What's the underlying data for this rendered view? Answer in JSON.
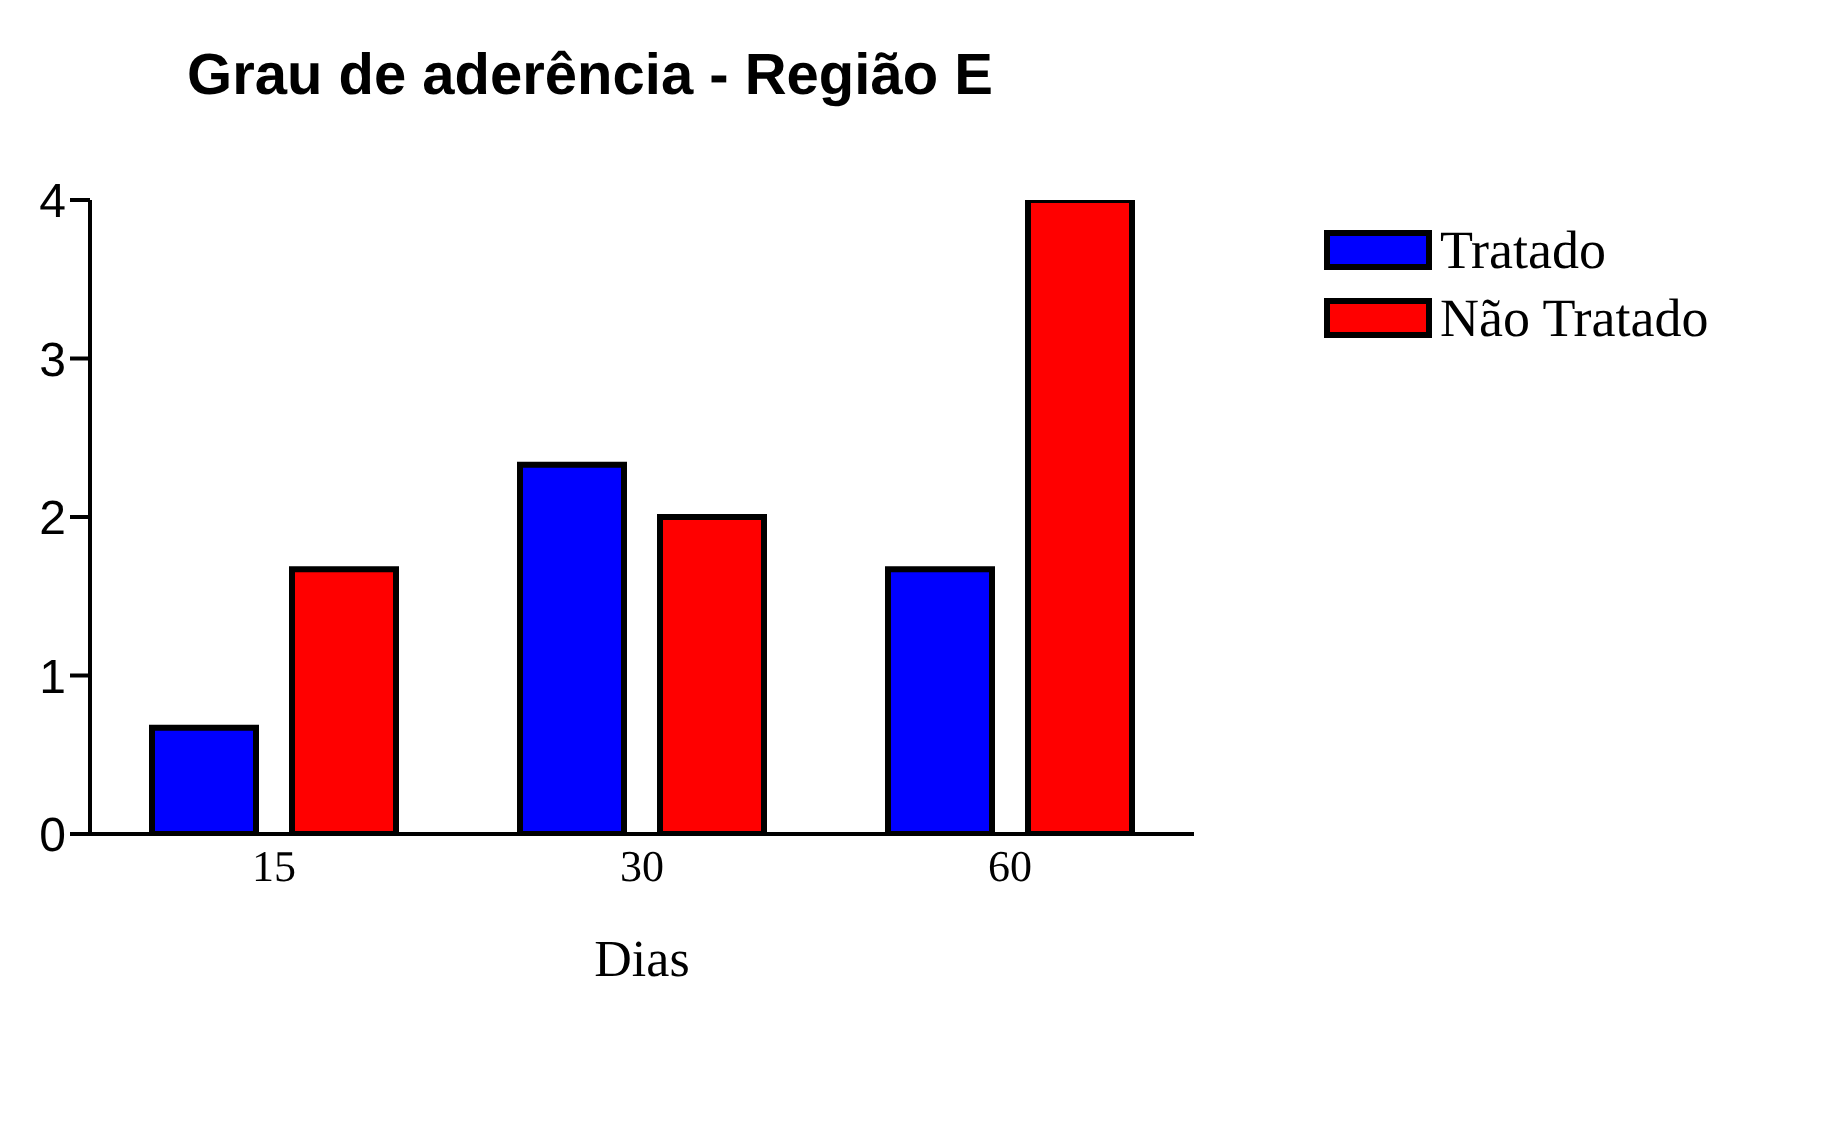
{
  "chart_data": {
    "type": "bar",
    "title": "Grau de aderência - Região E",
    "xlabel": "Dias",
    "categories": [
      "15",
      "30",
      "60"
    ],
    "series": [
      {
        "name": "Tratado",
        "color": "#0000ff",
        "values": [
          0.67,
          2.33,
          1.67
        ]
      },
      {
        "name": "Não Tratado",
        "color": "#ff0000",
        "values": [
          1.67,
          2,
          4
        ]
      }
    ],
    "ylim": [
      0,
      4
    ],
    "yticks": [
      0,
      1,
      2,
      3,
      4
    ],
    "grid": false,
    "legend": "top right"
  }
}
